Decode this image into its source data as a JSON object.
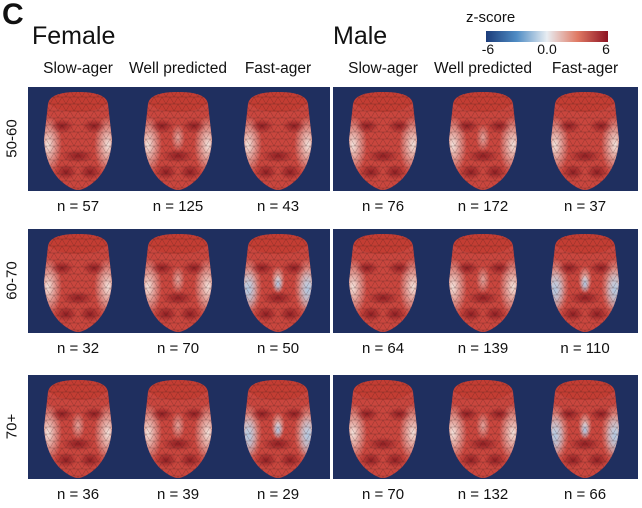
{
  "panel_label": "C",
  "colorbar": {
    "title": "z-score",
    "ticks": [
      "-6",
      "0.0",
      "6"
    ],
    "min": -6,
    "max": 6,
    "colormap": [
      "#1b3c7a",
      "#4f8cc4",
      "#e8edf2",
      "#e07a64",
      "#8e1323"
    ]
  },
  "groups": [
    {
      "title": "Female",
      "columns": [
        "Slow-ager",
        "Well predicted",
        "Fast-ager"
      ]
    },
    {
      "title": "Male",
      "columns": [
        "Slow-ager",
        "Well predicted",
        "Fast-ager"
      ]
    }
  ],
  "rows": [
    {
      "label": "50-60",
      "female_n": [
        "n = 57",
        "n = 125",
        "n = 43"
      ],
      "male_n": [
        "n = 76",
        "n = 172",
        "n = 37"
      ]
    },
    {
      "label": "60-70",
      "female_n": [
        "n = 32",
        "n = 70",
        "n = 50"
      ],
      "male_n": [
        "n = 64",
        "n = 139",
        "n = 110"
      ]
    },
    {
      "label": "70+",
      "female_n": [
        "n = 36",
        "n = 39",
        "n = 29"
      ],
      "male_n": [
        "n = 70",
        "n = 132",
        "n = 66"
      ]
    }
  ],
  "colors": {
    "background_panel": "#1f2f5f",
    "face_red": "#c8453c",
    "face_dark": "#8e1e22",
    "face_pale": "#f3d9cf"
  }
}
